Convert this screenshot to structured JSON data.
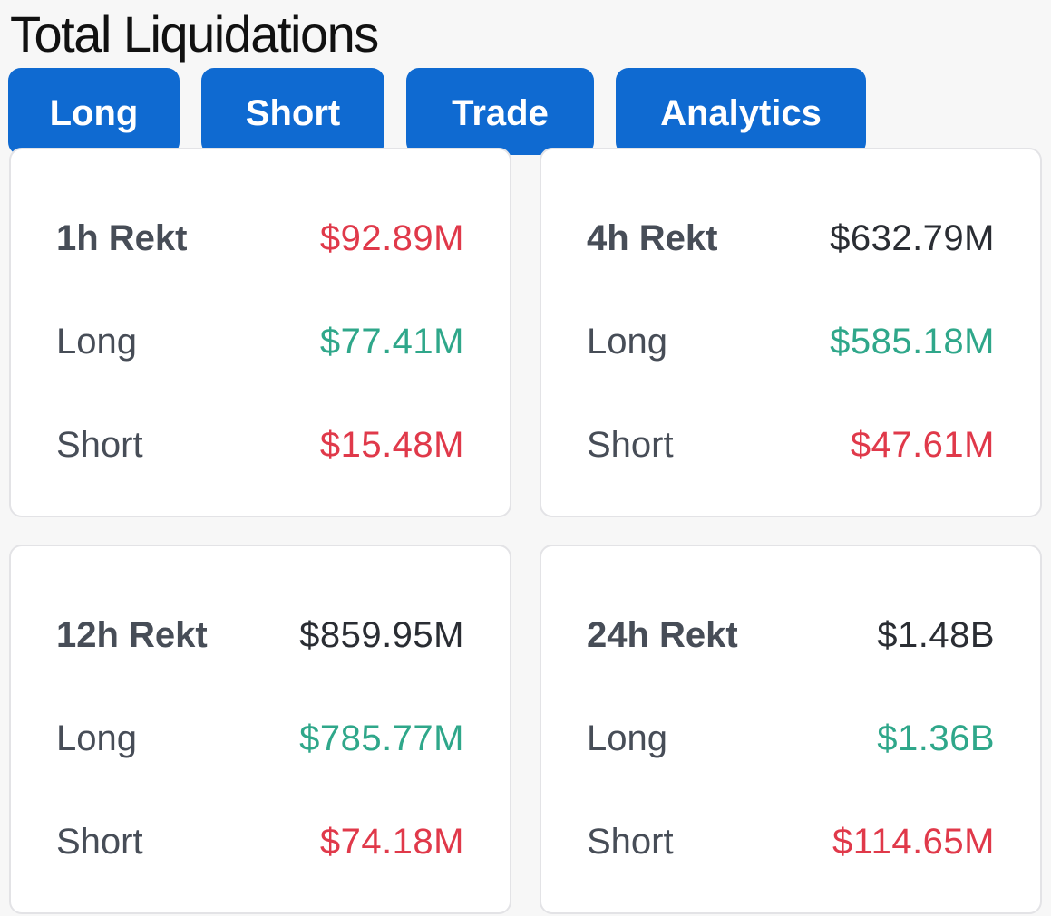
{
  "header": {
    "title": "Total Liquidations"
  },
  "tabs": [
    {
      "label": "Long"
    },
    {
      "label": "Short"
    },
    {
      "label": "Trade"
    },
    {
      "label": "Analytics"
    }
  ],
  "cards": [
    {
      "total_label": "1h Rekt",
      "total_value": "$92.89M",
      "long_label": "Long",
      "long_value": "$77.41M",
      "short_label": "Short",
      "short_value": "$15.48M"
    },
    {
      "total_label": "4h Rekt",
      "total_value": "$632.79M",
      "long_label": "Long",
      "long_value": "$585.18M",
      "short_label": "Short",
      "short_value": "$47.61M"
    },
    {
      "total_label": "12h Rekt",
      "total_value": "$859.95M",
      "long_label": "Long",
      "long_value": "$785.77M",
      "short_label": "Short",
      "short_value": "$74.18M"
    },
    {
      "total_label": "24h Rekt",
      "total_value": "$1.48B",
      "long_label": "Long",
      "long_value": "$1.36B",
      "short_label": "Short",
      "short_value": "$114.65M"
    }
  ],
  "colors": {
    "accent": "#0f6ad1",
    "negative": "#e0394a",
    "positive": "#2fa78a",
    "neutral_value": "#2a2d33",
    "label": "#474d57"
  }
}
